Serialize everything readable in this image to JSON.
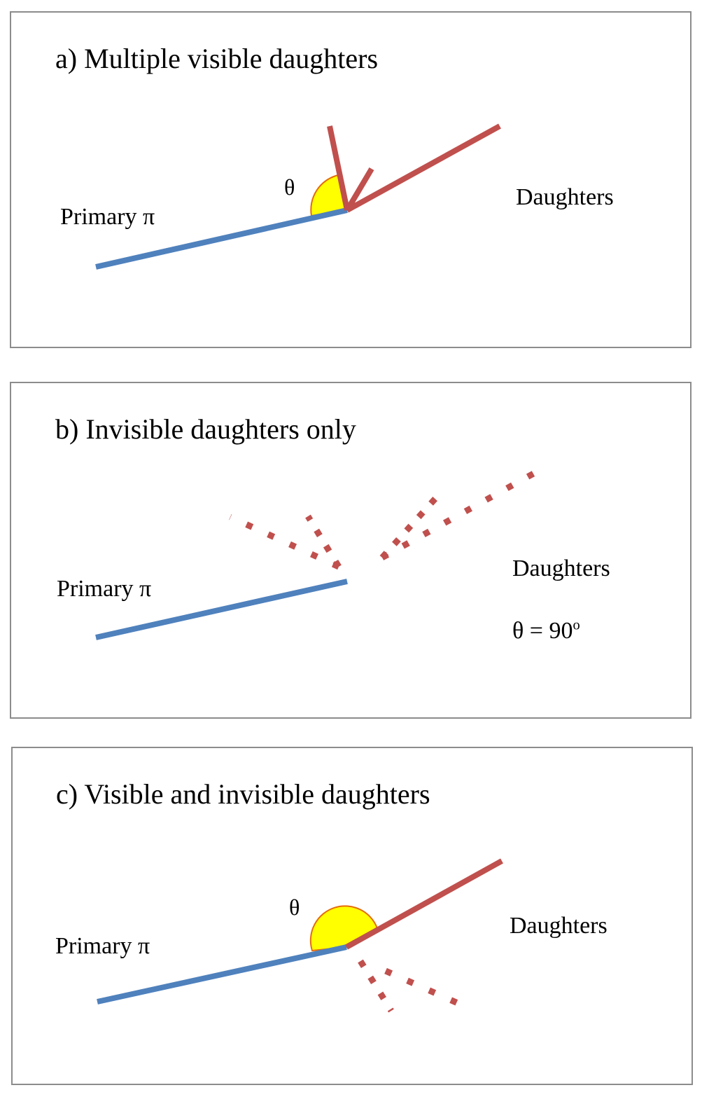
{
  "colors": {
    "primary_track": "#4f81bd",
    "daughter_track": "#c0504d",
    "angle_fill": "#ffff00",
    "angle_stroke": "#e46c0a",
    "frame": "#8c8c8c"
  },
  "panels": [
    {
      "title": "a) Multiple visible daughters",
      "primary_label": "Primary π",
      "daughters_label": "Daughters",
      "theta_label": "θ"
    },
    {
      "title": "b) Invisible daughters only",
      "primary_label": "Primary π",
      "daughters_label": "Daughters",
      "theta_eq": "θ = 90",
      "theta_sup": "o"
    },
    {
      "title": "c) Visible and invisible daughters",
      "primary_label": "Primary π",
      "daughters_label": "Daughters",
      "theta_label": "θ"
    }
  ]
}
